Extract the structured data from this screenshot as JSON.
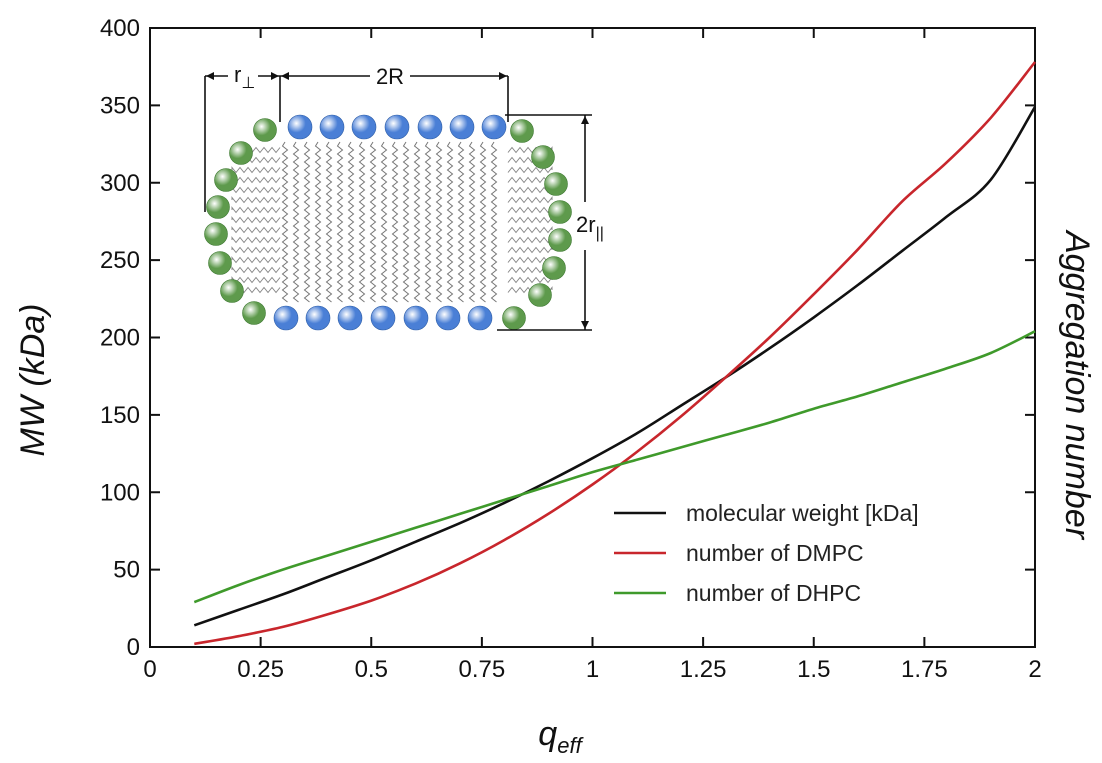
{
  "chart_data": {
    "type": "line",
    "title": "",
    "xlabel": "q",
    "xlabel_sub": "eff",
    "ylabel": "MW (kDa)",
    "ylabel_right": "Aggregation number",
    "xlim": [
      0,
      2
    ],
    "ylim": [
      0,
      400
    ],
    "x_ticks": [
      "0",
      "0.25",
      "0.5",
      "0.75",
      "1",
      "1.25",
      "1.5",
      "1.75",
      "2"
    ],
    "y_ticks": [
      "0",
      "50",
      "100",
      "150",
      "200",
      "250",
      "300",
      "350",
      "400"
    ],
    "grid": false,
    "legend_position": "bottom-right",
    "x": [
      0.1,
      0.2,
      0.3,
      0.4,
      0.5,
      0.6,
      0.7,
      0.8,
      0.9,
      1.0,
      1.1,
      1.2,
      1.3,
      1.4,
      1.5,
      1.6,
      1.7,
      1.8,
      1.9,
      2.0
    ],
    "series": [
      {
        "name": "molecular weight [kDa]",
        "color": "#111111",
        "values": [
          14,
          24,
          34,
          45,
          56,
          68,
          80,
          93,
          107,
          122,
          138,
          156,
          174,
          193,
          213,
          234,
          256,
          278,
          302,
          349
        ]
      },
      {
        "name": "number of DMPC",
        "color": "#c8262c",
        "values": [
          2,
          7,
          13,
          21,
          30,
          41,
          54,
          69,
          86,
          105,
          126,
          149,
          174,
          200,
          228,
          257,
          288,
          313,
          342,
          378
        ]
      },
      {
        "name": "number of DHPC",
        "color": "#3f9a2b",
        "values": [
          29,
          40,
          50,
          59,
          68,
          77,
          86,
          95,
          104,
          113,
          121,
          129,
          137,
          145,
          154,
          162,
          171,
          180,
          190,
          204
        ]
      }
    ]
  },
  "inset": {
    "label_r_perp": "r",
    "label_r_perp_sub": "⊥",
    "label_2R": "2R",
    "label_2r_par": "2r",
    "label_2r_par_sub": "||",
    "headgroup_colors": {
      "DMPC": "#4a7fd6",
      "DHPC": "#5e9a4c"
    }
  }
}
